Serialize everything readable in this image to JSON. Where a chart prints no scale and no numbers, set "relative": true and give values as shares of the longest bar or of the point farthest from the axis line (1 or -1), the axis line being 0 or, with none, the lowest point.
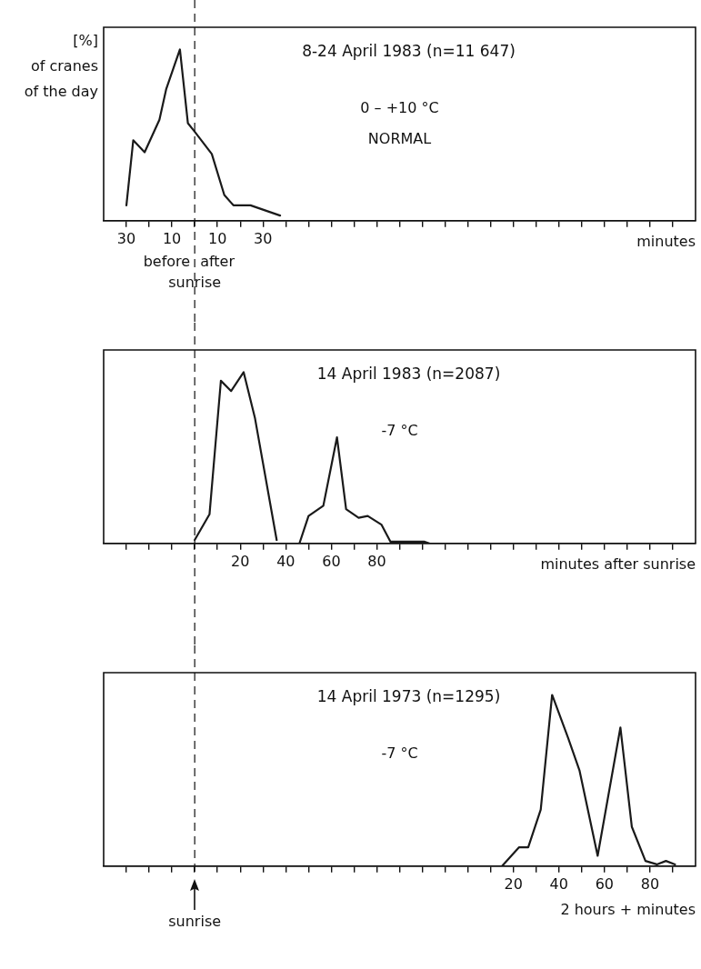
{
  "chart_data": [
    {
      "type": "line",
      "title": "8-24 April 1983 (n=11 647)",
      "ylabel": "[%]\nof cranes\nof the day",
      "xlabel": "minutes",
      "relative": true,
      "legend": false,
      "grid": false,
      "marker": "none",
      "line_style": "solid",
      "annotations": [
        "0 – +10 °C",
        "NORMAL",
        "before",
        "after",
        "sunrise"
      ],
      "ref_lines": [
        {
          "axis": "x",
          "value": 0,
          "line_style": "dashed"
        }
      ],
      "xlim": [
        -40,
        220
      ],
      "xticks": [
        {
          "value": -30,
          "label": "30"
        },
        {
          "value": -20,
          "label": null
        },
        {
          "value": -10,
          "label": "10"
        },
        {
          "value": 0,
          "label": null
        },
        {
          "value": 10,
          "label": "10"
        },
        {
          "value": 20,
          "label": null
        },
        {
          "value": 30,
          "label": "30"
        },
        {
          "value": 40,
          "label": null
        },
        {
          "value": 50,
          "label": null
        },
        {
          "value": 60,
          "label": null
        },
        {
          "value": 70,
          "label": null
        },
        {
          "value": 80,
          "label": null
        },
        {
          "value": 90,
          "label": null
        },
        {
          "value": 100,
          "label": null
        },
        {
          "value": 110,
          "label": null
        },
        {
          "value": 120,
          "label": null
        },
        {
          "value": 130,
          "label": null
        },
        {
          "value": 140,
          "label": null
        },
        {
          "value": 150,
          "label": null
        },
        {
          "value": 160,
          "label": null
        },
        {
          "value": 170,
          "label": null
        },
        {
          "value": 180,
          "label": null
        },
        {
          "value": 190,
          "label": null
        },
        {
          "value": 200,
          "label": null
        },
        {
          "value": 210,
          "label": null
        }
      ],
      "series": [
        {
          "color": "#1a1a1a",
          "x": [
            -30,
            -27,
            -22,
            -15.5,
            -12.5,
            -6.5,
            -3,
            0,
            7.5,
            13,
            17,
            24.5,
            37.5
          ],
          "values": [
            0.09,
            0.47,
            0.4,
            0.59,
            0.77,
            1,
            0.57,
            0.52,
            0.39,
            0.15,
            0.09,
            0.09,
            0.03
          ]
        }
      ]
    },
    {
      "type": "line",
      "title": "14 April 1983 (n=2087)",
      "xlabel": "minutes after sunrise",
      "relative": true,
      "legend": false,
      "grid": false,
      "marker": "none",
      "line_style": "solid",
      "annotations": [
        "-7 °C"
      ],
      "ref_lines": [
        {
          "axis": "x",
          "value": 0,
          "line_style": "dashed"
        }
      ],
      "xlim": [
        -40,
        220
      ],
      "xticks": [
        {
          "value": -30,
          "label": null
        },
        {
          "value": -20,
          "label": null
        },
        {
          "value": -10,
          "label": null
        },
        {
          "value": 0,
          "label": null
        },
        {
          "value": 10,
          "label": null
        },
        20,
        {
          "value": 30,
          "label": null
        },
        40,
        {
          "value": 50,
          "label": null
        },
        60,
        {
          "value": 70,
          "label": null
        },
        80,
        {
          "value": 90,
          "label": null
        },
        {
          "value": 100,
          "label": null
        },
        {
          "value": 110,
          "label": null
        },
        {
          "value": 120,
          "label": null
        },
        {
          "value": 130,
          "label": null
        },
        {
          "value": 140,
          "label": null
        },
        {
          "value": 150,
          "label": null
        },
        {
          "value": 160,
          "label": null
        },
        {
          "value": 170,
          "label": null
        },
        {
          "value": 180,
          "label": null
        },
        {
          "value": 190,
          "label": null
        },
        {
          "value": 200,
          "label": null
        },
        {
          "value": 210,
          "label": null
        }
      ],
      "series": [
        {
          "color": "#1a1a1a",
          "x": [
            0,
            6.5,
            11.5,
            16,
            21.5,
            26.5,
            36,
            41,
            46,
            50,
            56.5,
            62.5,
            66.5,
            72,
            76,
            82,
            86,
            101,
            103
          ],
          "values": [
            0.02,
            0.17,
            0.95,
            0.89,
            1,
            0.73,
            0.02,
            null,
            0,
            0.16,
            0.22,
            0.62,
            0.2,
            0.15,
            0.16,
            0.11,
            0.01,
            0.01,
            0
          ]
        }
      ]
    },
    {
      "type": "line",
      "title": "14 April 1973 (n=1295)",
      "xlabel": "2 hours + minutes",
      "relative": true,
      "legend": false,
      "grid": false,
      "marker": "none",
      "line_style": "solid",
      "annotations": [
        "-7 °C"
      ],
      "ref_lines": [
        {
          "axis": "x",
          "value": -120,
          "label": "sunrise",
          "line_style": "dashed"
        }
      ],
      "xlim": [
        -160,
        100
      ],
      "xticks": [
        {
          "value": -150,
          "label": null
        },
        {
          "value": -140,
          "label": null
        },
        {
          "value": -130,
          "label": null
        },
        {
          "value": -120,
          "label": null
        },
        {
          "value": -110,
          "label": null
        },
        {
          "value": -100,
          "label": null
        },
        {
          "value": -90,
          "label": null
        },
        {
          "value": -80,
          "label": null
        },
        {
          "value": -70,
          "label": null
        },
        {
          "value": -60,
          "label": null
        },
        {
          "value": -50,
          "label": null
        },
        {
          "value": -40,
          "label": null
        },
        {
          "value": -30,
          "label": null
        },
        {
          "value": -20,
          "label": null
        },
        {
          "value": -10,
          "label": null
        },
        {
          "value": 0,
          "label": null
        },
        {
          "value": 10,
          "label": null
        },
        20,
        {
          "value": 30,
          "label": null
        },
        40,
        {
          "value": 50,
          "label": null
        },
        60,
        {
          "value": 70,
          "label": null
        },
        80,
        {
          "value": 90,
          "label": null
        }
      ],
      "series": [
        {
          "color": "#1a1a1a",
          "x": [
            15,
            22.5,
            26.5,
            32,
            37,
            44,
            49,
            57,
            67,
            72,
            78,
            83,
            87,
            91
          ],
          "values": [
            0,
            0.11,
            0.11,
            0.33,
            1,
            0.75,
            0.56,
            0.06,
            0.81,
            0.23,
            0.03,
            0.01,
            0.03,
            0.01
          ]
        }
      ]
    }
  ]
}
